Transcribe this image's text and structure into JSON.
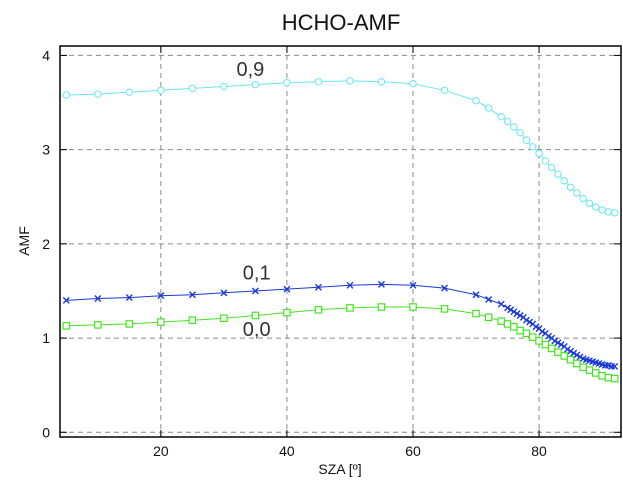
{
  "chart_data": {
    "type": "line",
    "title": "HCHO-AMF",
    "xlabel": "SZA [º]",
    "ylabel": "AMF",
    "xlim": [
      4,
      93
    ],
    "ylim": [
      -0.05,
      4.1
    ],
    "xticks": [
      20,
      40,
      60,
      80
    ],
    "yticks": [
      0,
      1,
      2,
      3,
      4
    ],
    "grid": true,
    "legend": "none",
    "series": [
      {
        "name": "0,9",
        "color": "#66e8f0",
        "marker": "circle",
        "label_at": [
          32,
          3.78
        ],
        "x": [
          5,
          10,
          15,
          20,
          25,
          30,
          35,
          40,
          45,
          50,
          55,
          60,
          65,
          70,
          72,
          74,
          75,
          76,
          77,
          78,
          79,
          80,
          81,
          82,
          83,
          84,
          85,
          86,
          87,
          88,
          89,
          90,
          91,
          92
        ],
        "y": [
          3.58,
          3.59,
          3.61,
          3.63,
          3.65,
          3.67,
          3.69,
          3.71,
          3.72,
          3.73,
          3.72,
          3.7,
          3.63,
          3.52,
          3.44,
          3.35,
          3.3,
          3.24,
          3.18,
          3.1,
          3.03,
          2.96,
          2.88,
          2.81,
          2.74,
          2.67,
          2.6,
          2.54,
          2.48,
          2.43,
          2.39,
          2.36,
          2.34,
          2.33
        ]
      },
      {
        "name": "0,1",
        "color": "#1a3ad8",
        "marker": "cross",
        "label_at": [
          33,
          1.62
        ],
        "x": [
          5,
          10,
          15,
          20,
          25,
          30,
          35,
          40,
          45,
          50,
          55,
          60,
          65,
          70,
          72,
          74,
          75,
          75.5,
          76,
          76.5,
          77,
          77.5,
          78,
          78.5,
          79,
          79.5,
          80,
          80.5,
          81,
          81.5,
          82,
          82.5,
          83,
          83.5,
          84,
          84.5,
          85,
          85.5,
          86,
          86.5,
          87,
          87.5,
          88,
          88.5,
          89,
          89.5,
          90,
          90.5,
          91,
          91.5,
          92
        ],
        "y": [
          1.4,
          1.42,
          1.43,
          1.45,
          1.46,
          1.48,
          1.5,
          1.52,
          1.54,
          1.56,
          1.57,
          1.56,
          1.53,
          1.46,
          1.41,
          1.36,
          1.32,
          1.3,
          1.28,
          1.26,
          1.24,
          1.22,
          1.19,
          1.17,
          1.15,
          1.12,
          1.1,
          1.07,
          1.05,
          1.02,
          1.0,
          0.97,
          0.95,
          0.93,
          0.91,
          0.88,
          0.86,
          0.84,
          0.82,
          0.8,
          0.78,
          0.77,
          0.76,
          0.75,
          0.74,
          0.73,
          0.72,
          0.71,
          0.71,
          0.7,
          0.7
        ]
      },
      {
        "name": "0,0",
        "color": "#44e620",
        "marker": "square",
        "label_at": [
          33,
          1.02
        ],
        "x": [
          5,
          10,
          15,
          20,
          25,
          30,
          35,
          40,
          45,
          50,
          55,
          60,
          65,
          70,
          72,
          74,
          75,
          76,
          77,
          78,
          79,
          80,
          81,
          82,
          83,
          84,
          85,
          86,
          87,
          88,
          89,
          90,
          91,
          92
        ],
        "y": [
          1.13,
          1.14,
          1.15,
          1.17,
          1.19,
          1.21,
          1.24,
          1.27,
          1.3,
          1.32,
          1.33,
          1.33,
          1.31,
          1.26,
          1.22,
          1.18,
          1.15,
          1.12,
          1.08,
          1.05,
          1.01,
          0.97,
          0.93,
          0.89,
          0.85,
          0.81,
          0.77,
          0.73,
          0.69,
          0.66,
          0.63,
          0.6,
          0.58,
          0.57
        ]
      }
    ]
  }
}
